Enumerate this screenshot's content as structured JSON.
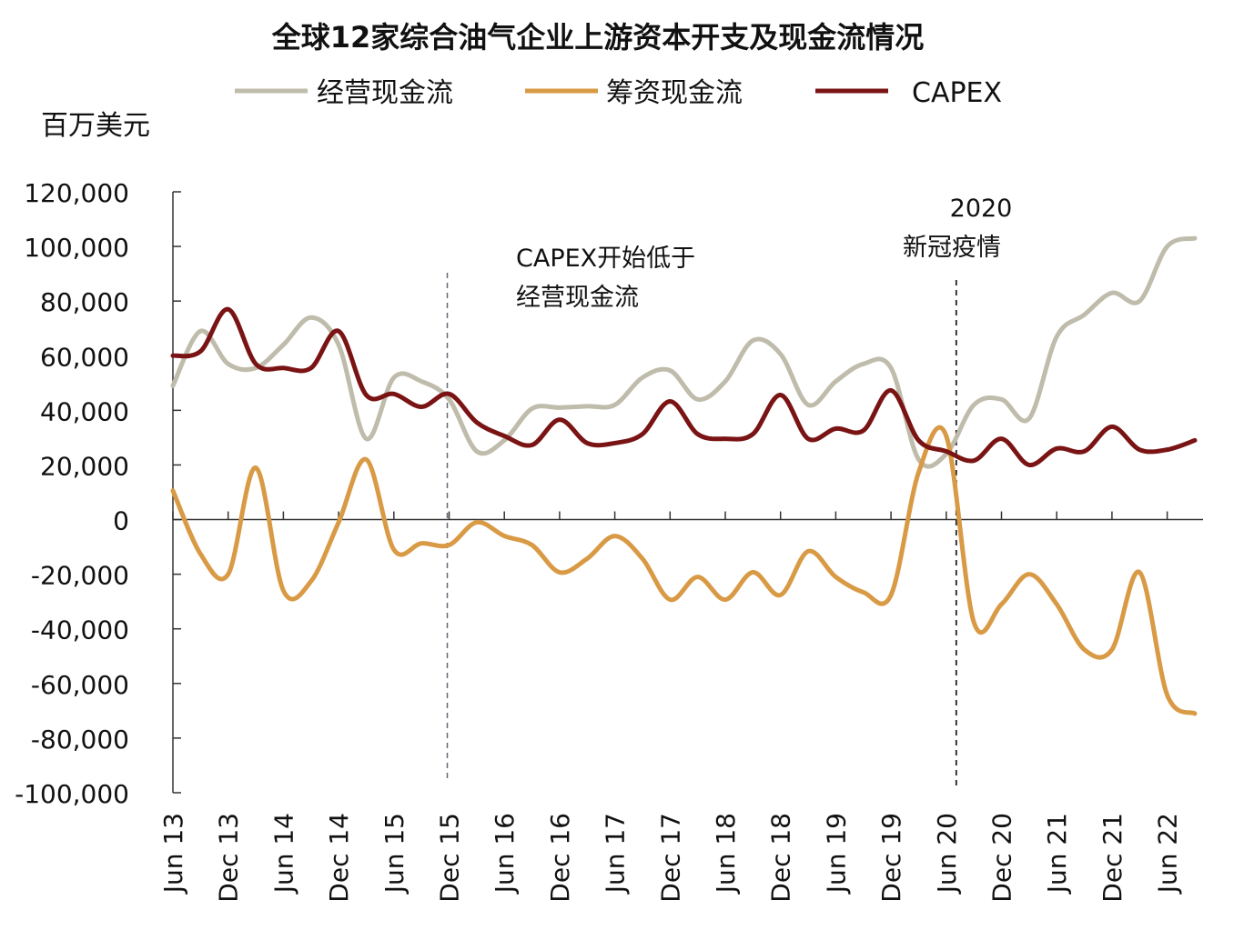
{
  "chart_data": {
    "type": "line",
    "title": "全球12家综合油气企业上游资本开支及现金流情况",
    "ylabel": "百万美元",
    "xlabel": "",
    "ylim": [
      -100000,
      120000
    ],
    "yticks": [
      120000,
      100000,
      80000,
      60000,
      40000,
      20000,
      0,
      -20000,
      -40000,
      -60000,
      -80000,
      -100000
    ],
    "ytick_labels": [
      "120,000",
      "100,000",
      "80,000",
      "60,000",
      "40,000",
      "20,000",
      "0",
      "-20,000",
      "-40,000",
      "-60,000",
      "-80,000",
      "-100,000"
    ],
    "xtick_labels": [
      "Jun 13",
      "Dec 13",
      "Jun 14",
      "Dec 14",
      "Jun 15",
      "Dec 15",
      "Jun 16",
      "Dec 16",
      "Jun 17",
      "Dec 17",
      "Jun 18",
      "Dec 18",
      "Jun 19",
      "Dec 19",
      "Jun 20",
      "Dec 20",
      "Jun 21",
      "Dec 21",
      "Jun 22"
    ],
    "x": [
      "Jun 13",
      "Sep 13",
      "Dec 13",
      "Mar 14",
      "Jun 14",
      "Sep 14",
      "Dec 14",
      "Mar 15",
      "Jun 15",
      "Sep 15",
      "Dec 15",
      "Mar 16",
      "Jun 16",
      "Sep 16",
      "Dec 16",
      "Mar 17",
      "Jun 17",
      "Sep 17",
      "Dec 17",
      "Mar 18",
      "Jun 18",
      "Sep 18",
      "Dec 18",
      "Mar 19",
      "Jun 19",
      "Sep 19",
      "Dec 19",
      "Mar 20",
      "Jun 20",
      "Sep 20",
      "Dec 20",
      "Mar 21",
      "Jun 21",
      "Sep 21",
      "Dec 21",
      "Mar 22",
      "Jun 22",
      "Sep 22"
    ],
    "series": [
      {
        "name": "经营现金流",
        "color": "#bfbcab",
        "values": [
          49000,
          69000,
          57000,
          55500,
          64000,
          74000,
          64000,
          29600,
          52000,
          50600,
          44000,
          25000,
          29000,
          40600,
          41000,
          41500,
          42000,
          52000,
          54600,
          44000,
          50600,
          65600,
          60600,
          42000,
          50600,
          57000,
          55500,
          22000,
          24000,
          42000,
          44000,
          37000,
          67000,
          75000,
          83000,
          80000,
          100000,
          103000
        ]
      },
      {
        "name": "筹资现金流",
        "color": "#d99a45",
        "values": [
          10600,
          -12600,
          -20000,
          19000,
          -26000,
          -22600,
          -1000,
          22000,
          -11000,
          -8700,
          -9300,
          -1000,
          -6000,
          -9300,
          -19300,
          -14300,
          -6000,
          -14300,
          -29300,
          -21000,
          -29300,
          -19300,
          -27600,
          -11600,
          -21000,
          -26600,
          -27600,
          17300,
          30600,
          -37600,
          -31000,
          -20000,
          -31000,
          -47600,
          -47600,
          -19300,
          -64200,
          -71000
        ]
      },
      {
        "name": "CAPEX",
        "color": "#7a1414",
        "values": [
          60000,
          61600,
          77000,
          57000,
          55500,
          55500,
          69000,
          45600,
          46000,
          41300,
          46000,
          35600,
          30600,
          27300,
          36600,
          28000,
          28000,
          31300,
          43300,
          31300,
          29600,
          31300,
          45600,
          29600,
          33300,
          32600,
          47300,
          29000,
          25000,
          21600,
          29600,
          20000,
          26000,
          25000,
          34000,
          25600,
          25600,
          29000
        ]
      }
    ],
    "annotations": [
      {
        "text_lines": [
          "CAPEX开始低于",
          "经营现金流"
        ],
        "at": "Dec 15"
      },
      {
        "text_lines": [
          "2020",
          "新冠疫情"
        ],
        "at": "Jun 20"
      }
    ],
    "legend": "top",
    "grid": false
  }
}
